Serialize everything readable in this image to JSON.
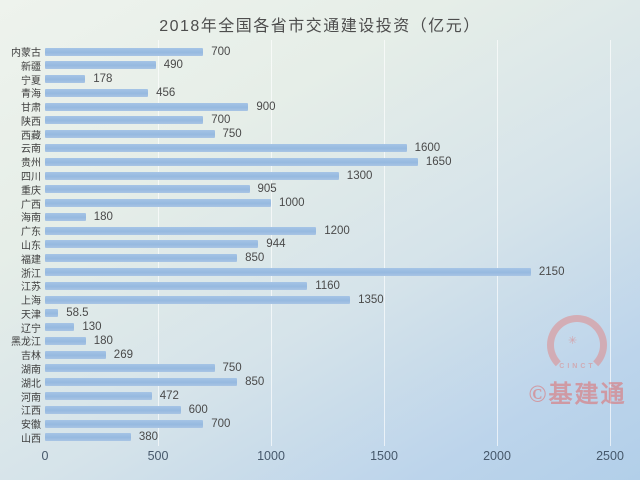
{
  "title": "2018年全国各省市交通建设投资（亿元）",
  "chart_data": {
    "type": "bar",
    "orientation": "horizontal",
    "title": "2018年全国各省市交通建设投资（亿元）",
    "unit": "亿元",
    "categories": [
      "内蒙古",
      "新疆",
      "宁夏",
      "青海",
      "甘肃",
      "陕西",
      "西藏",
      "云南",
      "贵州",
      "四川",
      "重庆",
      "广西",
      "海南",
      "广东",
      "山东",
      "福建",
      "浙江",
      "江苏",
      "上海",
      "天津",
      "辽宁",
      "黑龙江",
      "吉林",
      "湖南",
      "湖北",
      "河南",
      "江西",
      "安徽",
      "山西"
    ],
    "values": [
      700,
      490,
      178,
      456,
      900,
      700,
      750,
      1600,
      1650,
      1300,
      905,
      1000,
      180,
      1200,
      944,
      850,
      2150,
      1160,
      1350,
      58.5,
      130,
      180,
      269,
      750,
      850,
      472,
      600,
      700,
      380
    ],
    "xlabel": "",
    "ylabel": "",
    "xlim": [
      0,
      2500
    ],
    "x_ticks": [
      0,
      500,
      1000,
      1500,
      2000,
      2500
    ],
    "grid": "vertical-gridlines-on",
    "legend": "none",
    "value_labels_shown": true,
    "bar_color": "#9abde2"
  },
  "watermark": {
    "logo_text": "CINCT",
    "label": "©基建通",
    "color": "#e06a6a"
  },
  "colors": {
    "background_top_left": "#eef3ed",
    "background_bottom_right": "#b2cfe9",
    "bar": "#9abde2",
    "title_text": "#4d4d4d",
    "axis_text": "#46586b"
  }
}
